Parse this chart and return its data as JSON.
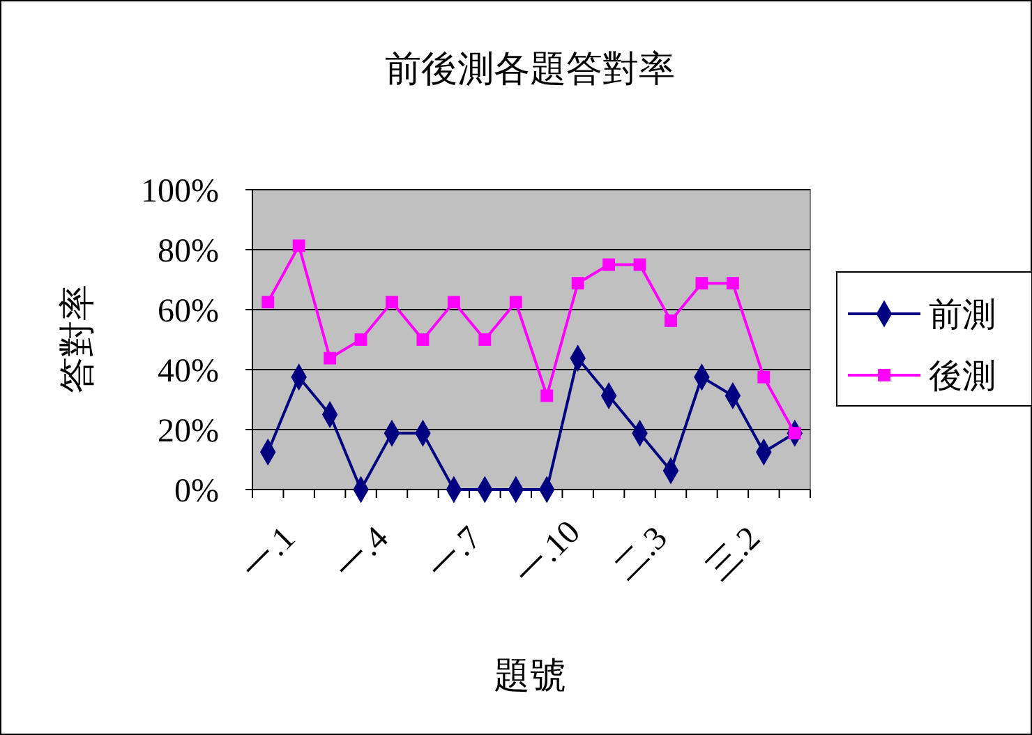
{
  "chart_data": {
    "type": "line",
    "title": "前後測各題答對率",
    "xlabel": "題號",
    "ylabel": "答對率",
    "categories": [
      "一.1",
      null,
      null,
      "一.4",
      null,
      null,
      "一.7",
      null,
      null,
      "一.10",
      null,
      null,
      "二.3",
      null,
      null,
      "三.2",
      null,
      null
    ],
    "series": [
      {
        "name": "前測",
        "color": "#000080",
        "marker": "diamond",
        "values": [
          12.5,
          37.5,
          25,
          0,
          18.8,
          18.8,
          0,
          0,
          0,
          0,
          43.8,
          31.3,
          18.8,
          6.3,
          37.5,
          31.3,
          12.5,
          18.8
        ]
      },
      {
        "name": "後測",
        "color": "#ff00ff",
        "marker": "square",
        "values": [
          62.5,
          81.3,
          43.8,
          50,
          62.5,
          50,
          62.5,
          50,
          62.5,
          31.3,
          68.8,
          75,
          75,
          56.3,
          68.8,
          68.8,
          37.5,
          18.8
        ]
      }
    ],
    "ylim": [
      0,
      100
    ],
    "yticks": [
      {
        "value": 0,
        "label": "0%"
      },
      {
        "value": 20,
        "label": "20%"
      },
      {
        "value": 40,
        "label": "40%"
      },
      {
        "value": 60,
        "label": "60%"
      },
      {
        "value": 80,
        "label": "80%"
      },
      {
        "value": 100,
        "label": "100%"
      }
    ],
    "grid": "y",
    "legend": "right",
    "line_style": "solid"
  }
}
